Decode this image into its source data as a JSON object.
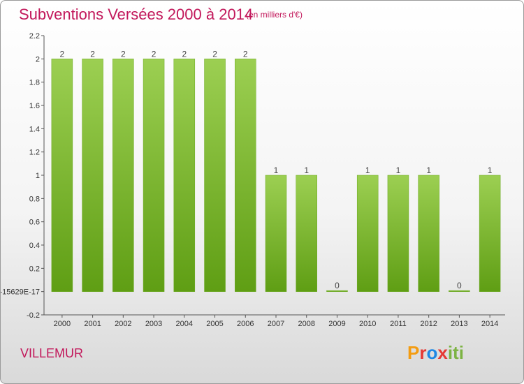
{
  "chart_data": {
    "type": "bar",
    "title": "Subventions Versées 2000 à 2014",
    "subtitle": "(en milliers d'€)",
    "categories": [
      "2000",
      "2001",
      "2002",
      "2003",
      "2004",
      "2005",
      "2006",
      "2007",
      "2008",
      "2009",
      "2010",
      "2011",
      "2012",
      "2013",
      "2014"
    ],
    "values": [
      2,
      2,
      2,
      2,
      2,
      2,
      2,
      1,
      1,
      0,
      1,
      1,
      1,
      0,
      1
    ],
    "data_labels": [
      "2",
      "2",
      "2",
      "2",
      "2",
      "2",
      "2",
      "1",
      "1",
      "0",
      "1",
      "1",
      "1",
      "0",
      "1"
    ],
    "ylim": [
      -0.2,
      2.2
    ],
    "yticks": [
      {
        "value": 2.2,
        "label": "2.2"
      },
      {
        "value": 2,
        "label": "2"
      },
      {
        "value": 1.8,
        "label": "1.8"
      },
      {
        "value": 1.6,
        "label": "1.6"
      },
      {
        "value": 1.4,
        "label": "1.4"
      },
      {
        "value": 1.2,
        "label": "1.2"
      },
      {
        "value": 1,
        "label": "1"
      },
      {
        "value": 0.8,
        "label": "0.8"
      },
      {
        "value": 0.6,
        "label": "0.6"
      },
      {
        "value": 0.4,
        "label": "0.4"
      },
      {
        "value": 0.2,
        "label": "0.2"
      },
      {
        "value": 0,
        "label": "-15629E-17"
      },
      {
        "value": -0.2,
        "label": "-0.2"
      }
    ],
    "grid": false,
    "bar_color": "#7cb82f"
  },
  "location": "VILLEMUR",
  "brand": {
    "p": "P",
    "r": "r",
    "o": "o",
    "x": "x",
    "iti": "iti"
  }
}
